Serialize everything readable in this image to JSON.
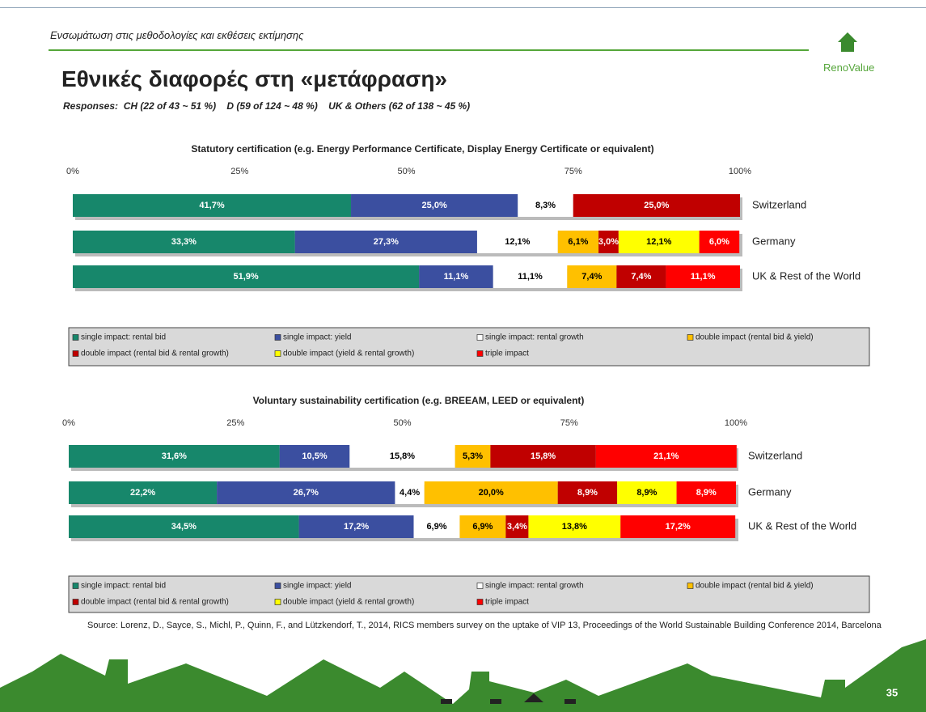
{
  "header": "Ενσωμάτωση στις μεθοδολογίες και εκθέσεις εκτίμησης",
  "logo": "RenoValue",
  "title": "Εθνικές διαφορές στη «μετάφραση»",
  "subtitle": "Responses:  CH (22 of 43 ~ 51 %)    D (59 of 124 ~ 48 %)    UK & Others (62 of 138 ~ 45 %)",
  "source": "Source: Lorenz, D., Sayce, S., Michl, P., Quinn, F., and Lützkendorf, T., 2014, RICS members survey on the uptake of VIP 13, Proceedings of the World Sustainable Building Conference 2014, Barcelona",
  "page_number": "35",
  "chart_data": [
    {
      "type": "bar",
      "orientation": "horizontal",
      "stacked": true,
      "title": "Statutory certification (e.g. Energy Performance Certificate, Display Energy Certificate or equivalent)",
      "categories": [
        "Switzerland",
        "Germany",
        "UK & Rest of the World"
      ],
      "xlim": [
        0,
        100
      ],
      "xticks": [
        {
          "value": 0,
          "label": "0%"
        },
        {
          "value": 25,
          "label": "25%"
        },
        {
          "value": 50,
          "label": "50%"
        },
        {
          "value": 75,
          "label": "75%"
        },
        {
          "value": 100,
          "label": "100%"
        }
      ],
      "series": [
        {
          "name": "single impact: rental bid",
          "color": "#17876b",
          "values": [
            41.7,
            33.3,
            51.9
          ],
          "value_labels": [
            "41,7%",
            "33,3%",
            "51,9%"
          ]
        },
        {
          "name": "single impact: yield",
          "color": "#3b4fa0",
          "values": [
            25.0,
            27.3,
            11.1
          ],
          "value_labels": [
            "25,0%",
            "27,3%",
            "11,1%"
          ]
        },
        {
          "name": "single impact: rental growth",
          "color": "#ffffff",
          "values": [
            8.3,
            12.1,
            11.1
          ],
          "value_labels": [
            "8,3%",
            "12,1%",
            "11,1%"
          ]
        },
        {
          "name": "double impact (rental bid & yield)",
          "color": "#ffc000",
          "values": [
            null,
            6.1,
            7.4
          ],
          "value_labels": [
            null,
            "6,1%",
            "7,4%"
          ]
        },
        {
          "name": "double impact (rental bid & rental growth)",
          "color": "#c00000",
          "values": [
            25.0,
            3.0,
            7.4
          ],
          "value_labels": [
            "25,0%",
            "3,0%",
            "7,4%"
          ]
        },
        {
          "name": "double impact (yield & rental growth)",
          "color": "#ffff00",
          "values": [
            null,
            12.1,
            null
          ],
          "value_labels": [
            null,
            "12,1%",
            null
          ]
        },
        {
          "name": "triple impact",
          "color": "#ff0000",
          "values": [
            null,
            6.0,
            11.1
          ],
          "value_labels": [
            null,
            "6,0%",
            "11,1%"
          ]
        }
      ]
    },
    {
      "type": "bar",
      "orientation": "horizontal",
      "stacked": true,
      "title": "Voluntary sustainability certification (e.g. BREEAM, LEED or equivalent)",
      "categories": [
        "Switzerland",
        "Germany",
        "UK & Rest of the World"
      ],
      "xlim": [
        0,
        100
      ],
      "xticks": [
        {
          "value": 0,
          "label": "0%"
        },
        {
          "value": 25,
          "label": "25%"
        },
        {
          "value": 50,
          "label": "50%"
        },
        {
          "value": 75,
          "label": "75%"
        },
        {
          "value": 100,
          "label": "100%"
        }
      ],
      "series": [
        {
          "name": "single impact: rental bid",
          "color": "#17876b",
          "values": [
            31.6,
            22.2,
            34.5
          ],
          "value_labels": [
            "31,6%",
            "22,2%",
            "34,5%"
          ]
        },
        {
          "name": "single impact: yield",
          "color": "#3b4fa0",
          "values": [
            10.5,
            26.7,
            17.2
          ],
          "value_labels": [
            "10,5%",
            "26,7%",
            "17,2%"
          ]
        },
        {
          "name": "single impact: rental growth",
          "color": "#ffffff",
          "values": [
            15.8,
            4.4,
            6.9
          ],
          "value_labels": [
            "15,8%",
            "4,4%",
            "6,9%"
          ]
        },
        {
          "name": "double impact (rental bid & yield)",
          "color": "#ffc000",
          "values": [
            5.3,
            20.0,
            6.9
          ],
          "value_labels": [
            "5,3%",
            "20,0%",
            "6,9%"
          ]
        },
        {
          "name": "double impact (rental bid & rental growth)",
          "color": "#c00000",
          "values": [
            15.8,
            8.9,
            3.4
          ],
          "value_labels": [
            "15,8%",
            "8,9%",
            "3,4%"
          ]
        },
        {
          "name": "double impact (yield & rental growth)",
          "color": "#ffff00",
          "values": [
            null,
            8.9,
            13.8
          ],
          "value_labels": [
            null,
            "8,9%",
            "13,8%"
          ]
        },
        {
          "name": "triple impact",
          "color": "#ff0000",
          "values": [
            21.1,
            8.9,
            17.2
          ],
          "value_labels": [
            "21,1%",
            "8,9%",
            "17,2%"
          ]
        }
      ]
    }
  ]
}
